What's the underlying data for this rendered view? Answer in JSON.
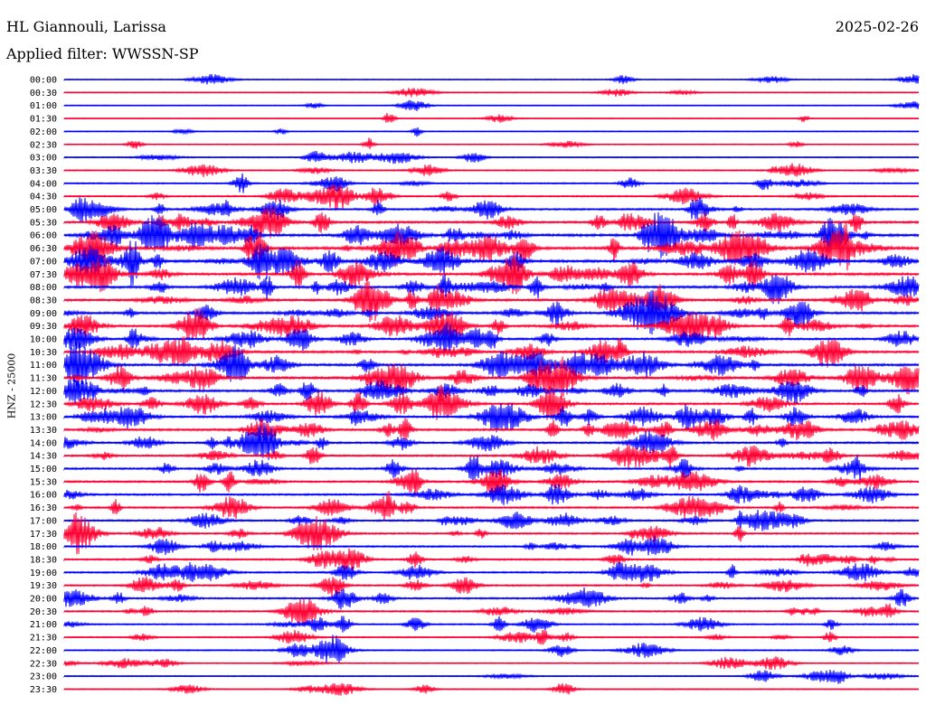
{
  "header": {
    "station": "HL Giannouli, Larissa",
    "date": "2025-02-26",
    "filter_label": "Applied filter: WWSSN-SP"
  },
  "chart_data": {
    "type": "line",
    "title": "HL Giannouli, Larissa",
    "ylabel": "HNZ - 25000",
    "row_interval_minutes": 30,
    "row_labels": [
      "00:00",
      "00:30",
      "01:00",
      "01:30",
      "02:00",
      "02:30",
      "03:00",
      "03:30",
      "04:00",
      "04:30",
      "05:00",
      "05:30",
      "06:00",
      "06:30",
      "07:00",
      "07:30",
      "08:00",
      "08:30",
      "09:00",
      "09:30",
      "10:00",
      "10:30",
      "11:00",
      "11:30",
      "12:00",
      "12:30",
      "13:00",
      "13:30",
      "14:00",
      "14:30",
      "15:00",
      "15:30",
      "16:00",
      "16:30",
      "17:00",
      "17:30",
      "18:00",
      "18:30",
      "19:00",
      "19:30",
      "20:00",
      "20:30",
      "21:00",
      "21:30",
      "22:00",
      "22:30",
      "23:00",
      "23:30"
    ],
    "colors": [
      "#0000ff",
      "#ff0033"
    ],
    "relative_activity": [
      0.08,
      0.06,
      0.04,
      0.06,
      0.06,
      0.08,
      0.12,
      0.16,
      0.22,
      0.28,
      0.42,
      0.55,
      0.7,
      0.75,
      0.72,
      0.65,
      0.6,
      0.58,
      0.55,
      0.55,
      0.5,
      0.55,
      0.6,
      0.6,
      0.55,
      0.5,
      0.52,
      0.5,
      0.45,
      0.42,
      0.42,
      0.44,
      0.42,
      0.4,
      0.38,
      0.38,
      0.36,
      0.36,
      0.34,
      0.34,
      0.36,
      0.32,
      0.24,
      0.2,
      0.18,
      0.14,
      0.12,
      0.1
    ],
    "grid": false,
    "legend": "none"
  }
}
